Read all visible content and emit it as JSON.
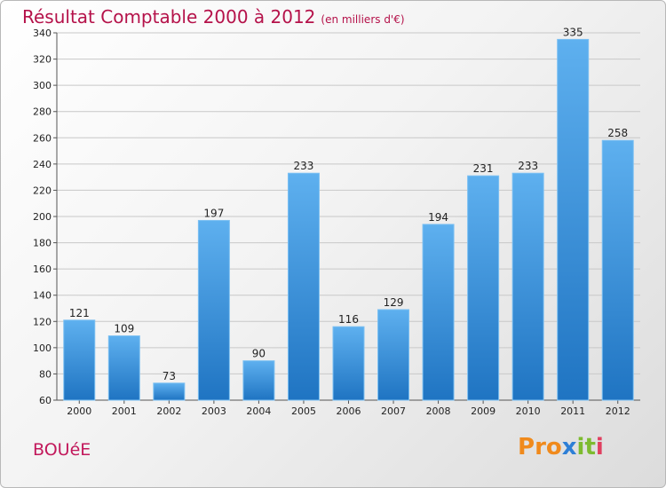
{
  "chart_data": {
    "type": "bar",
    "title": "Résultat Comptable 2000 à 2012",
    "subtitle": "(en milliers d'€)",
    "categories": [
      "2000",
      "2001",
      "2002",
      "2003",
      "2004",
      "2005",
      "2006",
      "2007",
      "2008",
      "2009",
      "2010",
      "2011",
      "2012"
    ],
    "values": [
      121,
      109,
      73,
      197,
      90,
      233,
      116,
      129,
      194,
      231,
      233,
      335,
      258
    ],
    "ylim": [
      60,
      340
    ],
    "yticks": [
      60,
      80,
      100,
      120,
      140,
      160,
      180,
      200,
      220,
      240,
      260,
      280,
      300,
      320,
      340
    ],
    "grid": true,
    "xlabel": "",
    "ylabel": ""
  },
  "commune": "BOUéE",
  "logo": {
    "letters": [
      "P",
      "r",
      "o",
      "x",
      "i",
      "t",
      "i"
    ],
    "colors": [
      "#f08a1c",
      "#f08a1c",
      "#f08a1c",
      "#2e7fd6",
      "#7dbb2f",
      "#7dbb2f",
      "#e04060"
    ]
  },
  "colors": {
    "bar": "#3d96de",
    "bar_light": "#5eb0ef",
    "bar_dark": "#1f74c2",
    "accent": "#b5124a"
  }
}
